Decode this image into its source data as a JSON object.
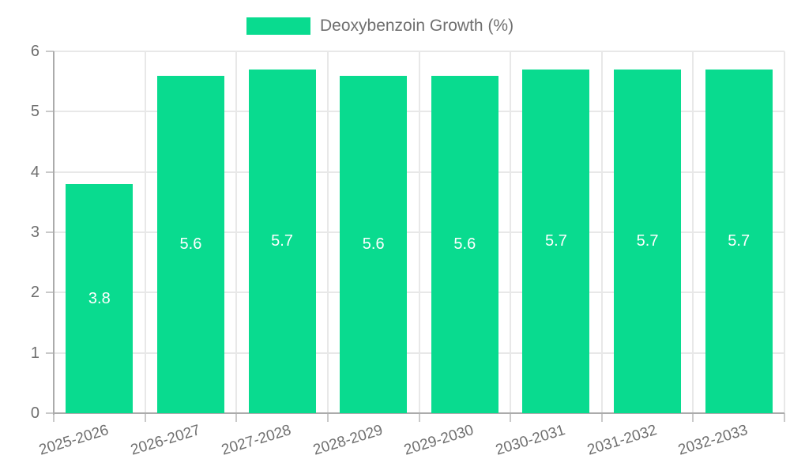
{
  "chart_data": {
    "type": "bar",
    "title": "",
    "legend": {
      "label": "Deoxybenzoin Growth (%)",
      "position": "top"
    },
    "categories": [
      "2025-2026",
      "2026-2027",
      "2027-2028",
      "2028-2029",
      "2029-2030",
      "2030-2031",
      "2031-2032",
      "2032-2033"
    ],
    "values": [
      3.8,
      5.6,
      5.7,
      5.6,
      5.6,
      5.7,
      5.7,
      5.7
    ],
    "value_labels": [
      "3.8",
      "5.6",
      "5.7",
      "5.6",
      "5.6",
      "5.7",
      "5.7",
      "5.7"
    ],
    "ylim": [
      0,
      6
    ],
    "yticks": [
      "0",
      "1",
      "2",
      "3",
      "4",
      "5",
      "6"
    ],
    "xlabel": "",
    "ylabel": "",
    "grid": true,
    "colors": {
      "bar": "#09db8f",
      "bar_value_text": "#ffffff",
      "axis_text": "#6f6f6f",
      "legend_text": "#6f6f6f",
      "gridline": "#e8e8e8",
      "axis_line": "#ababab",
      "tick": "#c9c9c9",
      "background": "#ffffff"
    }
  }
}
